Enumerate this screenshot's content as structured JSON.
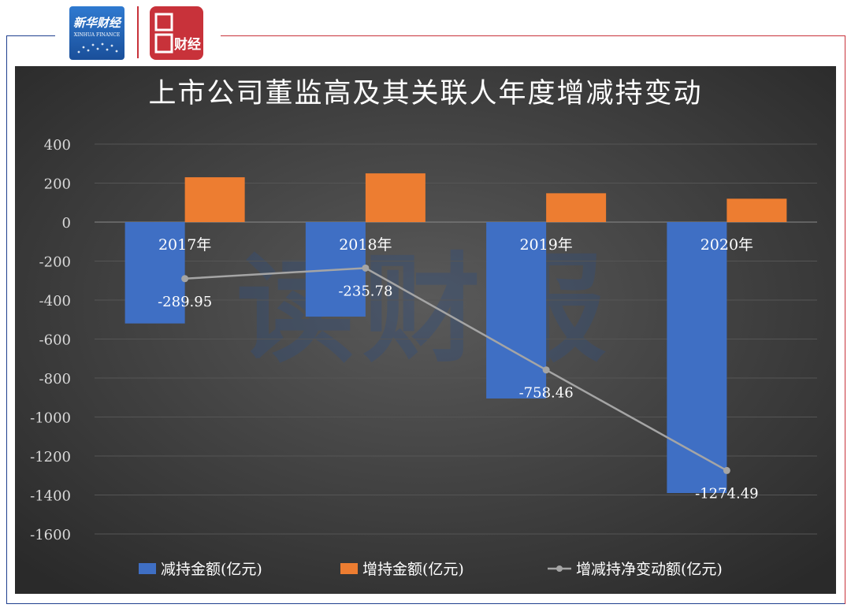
{
  "logos": {
    "xinhua": {
      "text": "新华财经",
      "subtext": "XINHUA FINANCE",
      "color": "#2266b8"
    },
    "second": {
      "text": "财经",
      "color": "#c8323a"
    }
  },
  "watermark": "读财报",
  "chart_data": {
    "type": "bar",
    "title": "上市公司董监高及其关联人年度增减持变动",
    "categories": [
      "2017年",
      "2018年",
      "2019年",
      "2020年"
    ],
    "series": [
      {
        "name": "减持金额(亿元)",
        "type": "bar",
        "color": "#3f6fc4",
        "values": [
          -520,
          -485,
          -905,
          -1390
        ]
      },
      {
        "name": "增持金额(亿元)",
        "type": "bar",
        "color": "#ed7d31",
        "values": [
          230,
          250,
          148,
          120
        ]
      },
      {
        "name": "增减持净变动额(亿元)",
        "type": "line",
        "color": "#a5a5a5",
        "values": [
          -289.95,
          -235.78,
          -758.46,
          -1274.49
        ],
        "labels": [
          "-289.95",
          "-235.78",
          "-758.46",
          "-1274.49"
        ]
      }
    ],
    "yticks": [
      "400",
      "200",
      "0",
      "-200",
      "-400",
      "-600",
      "-800",
      "-1000",
      "-1200",
      "-1400",
      "-1600"
    ],
    "ylim": [
      -1600,
      400
    ],
    "grid": true,
    "legend": "bottom",
    "xlabel": "",
    "ylabel": ""
  }
}
